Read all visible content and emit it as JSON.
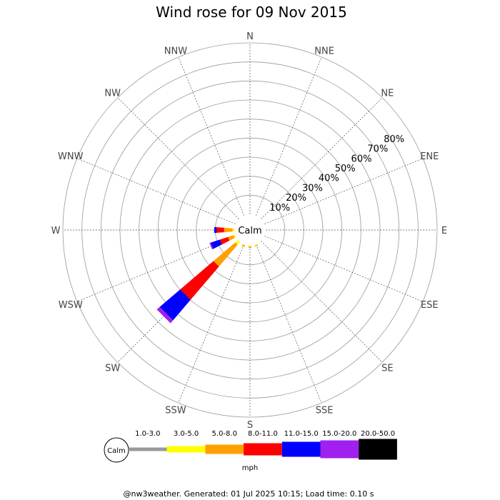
{
  "chart_data": {
    "type": "wind_rose",
    "title": "Wind rose for 09 Nov 2015",
    "center_label": "Calm",
    "directions": [
      "N",
      "NNE",
      "NE",
      "ENE",
      "E",
      "ESE",
      "SE",
      "SSE",
      "S",
      "SSW",
      "SW",
      "WSW",
      "W",
      "WNW",
      "NW",
      "NNW"
    ],
    "radial_ticks": [
      "10%",
      "20%",
      "30%",
      "40%",
      "50%",
      "60%",
      "70%",
      "80%"
    ],
    "radial_max": 90,
    "speed_bins": [
      {
        "label": "1.0-3.0",
        "color": "#999999"
      },
      {
        "label": "3.0-5.0",
        "color": "#ffff00"
      },
      {
        "label": "5.0-8.0",
        "color": "#ffa000"
      },
      {
        "label": "8.0-11.0",
        "color": "#ff0000"
      },
      {
        "label": "11.0-15.0",
        "color": "#0000ff"
      },
      {
        "label": "15.0-20.0",
        "color": "#a020f0"
      },
      {
        "label": "20.0-50.0",
        "color": "#000000"
      }
    ],
    "legend_unit": "mph",
    "legend_calm": "Calm",
    "series": [
      {
        "direction": "SSE",
        "values": [
          0,
          0.5,
          0.3,
          0,
          0,
          0,
          0
        ]
      },
      {
        "direction": "S",
        "values": [
          0,
          0.5,
          0.5,
          0,
          0,
          0,
          0
        ]
      },
      {
        "direction": "SSW",
        "values": [
          0,
          0.5,
          0.5,
          0,
          0,
          0,
          0
        ]
      },
      {
        "direction": "SW",
        "values": [
          0,
          2,
          15,
          23,
          14,
          2,
          0
        ]
      },
      {
        "direction": "WSW",
        "values": [
          0,
          1,
          3,
          4.5,
          5,
          0.5,
          0
        ]
      },
      {
        "direction": "W",
        "values": [
          0,
          1,
          4.5,
          4,
          1,
          0,
          0
        ]
      }
    ]
  },
  "footer": "@nw3weather. Generated: 01 Jul 2025 10:15; Load time: 0.10 s"
}
